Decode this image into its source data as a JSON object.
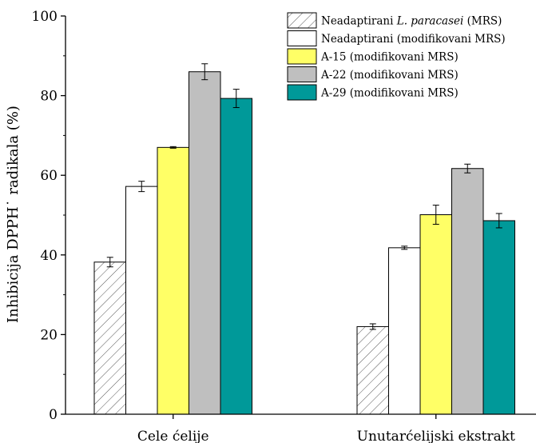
{
  "chart_data": {
    "type": "bar",
    "ylabel": "Inhibicija DPPH˙ radikala (%)",
    "xlabel": "",
    "ylim": [
      0,
      100
    ],
    "yticks": [
      "0",
      "20",
      "40",
      "60",
      "80",
      "100"
    ],
    "categories": [
      "Cele ćelije",
      "Unutarćelijski ekstrakt"
    ],
    "legend_position": "top-right",
    "series": [
      {
        "name": "Neadaptirani L. paracasei (MRS)",
        "name_parts": [
          {
            "text": "Neadaptirani ",
            "italic": false
          },
          {
            "text": "L. paracasei",
            "italic": true
          },
          {
            "text": " (MRS)",
            "italic": false
          }
        ],
        "fill": "hatch",
        "color": "#ffffff",
        "values": [
          38.2,
          22.0
        ],
        "errors": [
          1.2,
          0.7
        ]
      },
      {
        "name": "Neadaptirani (modifikovani MRS)",
        "name_parts": [
          {
            "text": "Neadaptirani (modifikovani MRS)",
            "italic": false
          }
        ],
        "fill": "solid",
        "color": "#ffffff",
        "values": [
          57.2,
          41.8
        ],
        "errors": [
          1.3,
          0.4
        ]
      },
      {
        "name": "A-15 (modifikovani MRS)",
        "name_parts": [
          {
            "text": "A-15 (modifikovani MRS)",
            "italic": false
          }
        ],
        "fill": "solid",
        "color": "#ffff66",
        "values": [
          67.0,
          50.1
        ],
        "errors": [
          0.2,
          2.4
        ]
      },
      {
        "name": "A-22 (modifikovani MRS)",
        "name_parts": [
          {
            "text": "A-22 (modifikovani MRS)",
            "italic": false
          }
        ],
        "fill": "solid",
        "color": "#bfbfbf",
        "values": [
          86.0,
          61.7
        ],
        "errors": [
          2.0,
          1.1
        ]
      },
      {
        "name": "A-29 (modifikovani MRS)",
        "name_parts": [
          {
            "text": "A-29 (modifikovani MRS)",
            "italic": false
          }
        ],
        "fill": "solid",
        "color": "#009999",
        "values": [
          79.3,
          48.6
        ],
        "errors": [
          2.3,
          1.8
        ]
      }
    ]
  }
}
